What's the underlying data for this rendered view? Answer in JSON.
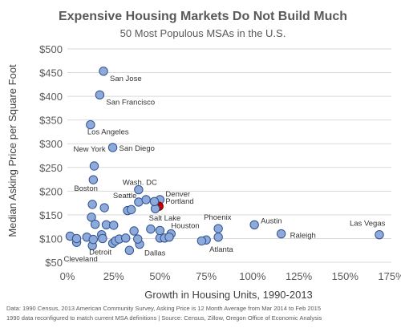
{
  "chart_data": {
    "type": "scatter",
    "title": "Expensive Housing Markets Do Not Build Much",
    "subtitle": "50 Most Populous MSAs in the U.S.",
    "xlabel": "Growth in Housing Units, 1990-2013",
    "ylabel": "Median Asking Price per Square Foot",
    "xlim": [
      0,
      175
    ],
    "ylim": [
      50,
      500
    ],
    "x_ticks": [
      0,
      25,
      50,
      75,
      100,
      125,
      150,
      175
    ],
    "x_tick_labels": [
      "0%",
      "25%",
      "50%",
      "75%",
      "100%",
      "125%",
      "150%",
      "175%"
    ],
    "y_ticks": [
      50,
      100,
      150,
      200,
      250,
      300,
      350,
      400,
      450,
      500
    ],
    "y_tick_labels": [
      "$50",
      "$100",
      "$150",
      "$200",
      "$250",
      "$300",
      "$350",
      "$400",
      "$450",
      "$500"
    ],
    "grid": "horizontal",
    "colors": {
      "point": "#8eaadb",
      "point_stroke": "#2f528f",
      "highlight": "#c00000",
      "highlight_stroke": "#7f0000",
      "grid": "#d9d9d9"
    },
    "points": [
      {
        "x": 19.5,
        "y": 453,
        "label": "San Jose"
      },
      {
        "x": 17.5,
        "y": 403,
        "label": "San Francisco"
      },
      {
        "x": 12.5,
        "y": 340,
        "label": "Los Angeles"
      },
      {
        "x": 24.5,
        "y": 292,
        "label": "San Diego"
      },
      {
        "x": 14.5,
        "y": 253,
        "label": "New York"
      },
      {
        "x": 14.0,
        "y": 224,
        "label": "Boston"
      },
      {
        "x": 38.5,
        "y": 203,
        "label": "Wash. DC"
      },
      {
        "x": 50.0,
        "y": 182,
        "label": "Denver"
      },
      {
        "x": 49.5,
        "y": 168,
        "label": "Portland",
        "highlight": true
      },
      {
        "x": 38.5,
        "y": 177,
        "label": "Seattle"
      },
      {
        "x": 47.5,
        "y": 163,
        "label": "Salt Lake"
      },
      {
        "x": 81.5,
        "y": 121,
        "label": "Phoenix"
      },
      {
        "x": 101.0,
        "y": 129,
        "label": "Austin"
      },
      {
        "x": 56.0,
        "y": 110,
        "label": "Houston"
      },
      {
        "x": 115.5,
        "y": 110,
        "label": "Raleigh"
      },
      {
        "x": 168.5,
        "y": 108,
        "label": "Las Vegas"
      },
      {
        "x": 39.0,
        "y": 88,
        "label": "Dallas"
      },
      {
        "x": 75.0,
        "y": 97,
        "label": "Atlanta"
      },
      {
        "x": 13.5,
        "y": 85,
        "label": "Detroit"
      },
      {
        "x": 5.0,
        "y": 92,
        "label": "Cleveland"
      },
      {
        "x": 13.5,
        "y": 172
      },
      {
        "x": 13.0,
        "y": 145
      },
      {
        "x": 15.0,
        "y": 130
      },
      {
        "x": 20.0,
        "y": 165
      },
      {
        "x": 21.0,
        "y": 129
      },
      {
        "x": 25.0,
        "y": 128
      },
      {
        "x": 32.5,
        "y": 159
      },
      {
        "x": 34.5,
        "y": 161
      },
      {
        "x": 42.5,
        "y": 182
      },
      {
        "x": 47.0,
        "y": 178
      },
      {
        "x": 36.0,
        "y": 116
      },
      {
        "x": 45.0,
        "y": 120
      },
      {
        "x": 1.5,
        "y": 105
      },
      {
        "x": 5.0,
        "y": 100
      },
      {
        "x": 10.5,
        "y": 103
      },
      {
        "x": 14.0,
        "y": 98
      },
      {
        "x": 18.5,
        "y": 108
      },
      {
        "x": 24.5,
        "y": 90
      },
      {
        "x": 26.0,
        "y": 95
      },
      {
        "x": 28.0,
        "y": 99
      },
      {
        "x": 31.5,
        "y": 101
      },
      {
        "x": 33.5,
        "y": 75
      },
      {
        "x": 38.0,
        "y": 99
      },
      {
        "x": 50.0,
        "y": 101
      },
      {
        "x": 52.5,
        "y": 101
      },
      {
        "x": 55.0,
        "y": 103
      },
      {
        "x": 72.5,
        "y": 95
      },
      {
        "x": 81.5,
        "y": 103
      },
      {
        "x": 50.0,
        "y": 117
      },
      {
        "x": 19.0,
        "y": 100
      }
    ]
  },
  "footer": {
    "line1": "Data: 1990 Census, 2013 American Community Survey, Asking Price is 12 Month Average from Mar 2014 to Feb 2015",
    "line2": "1990  data reconfigured to match current MSA definitions  |  Source: Census, Zillow, Oregon Office of Economic Analysis"
  }
}
